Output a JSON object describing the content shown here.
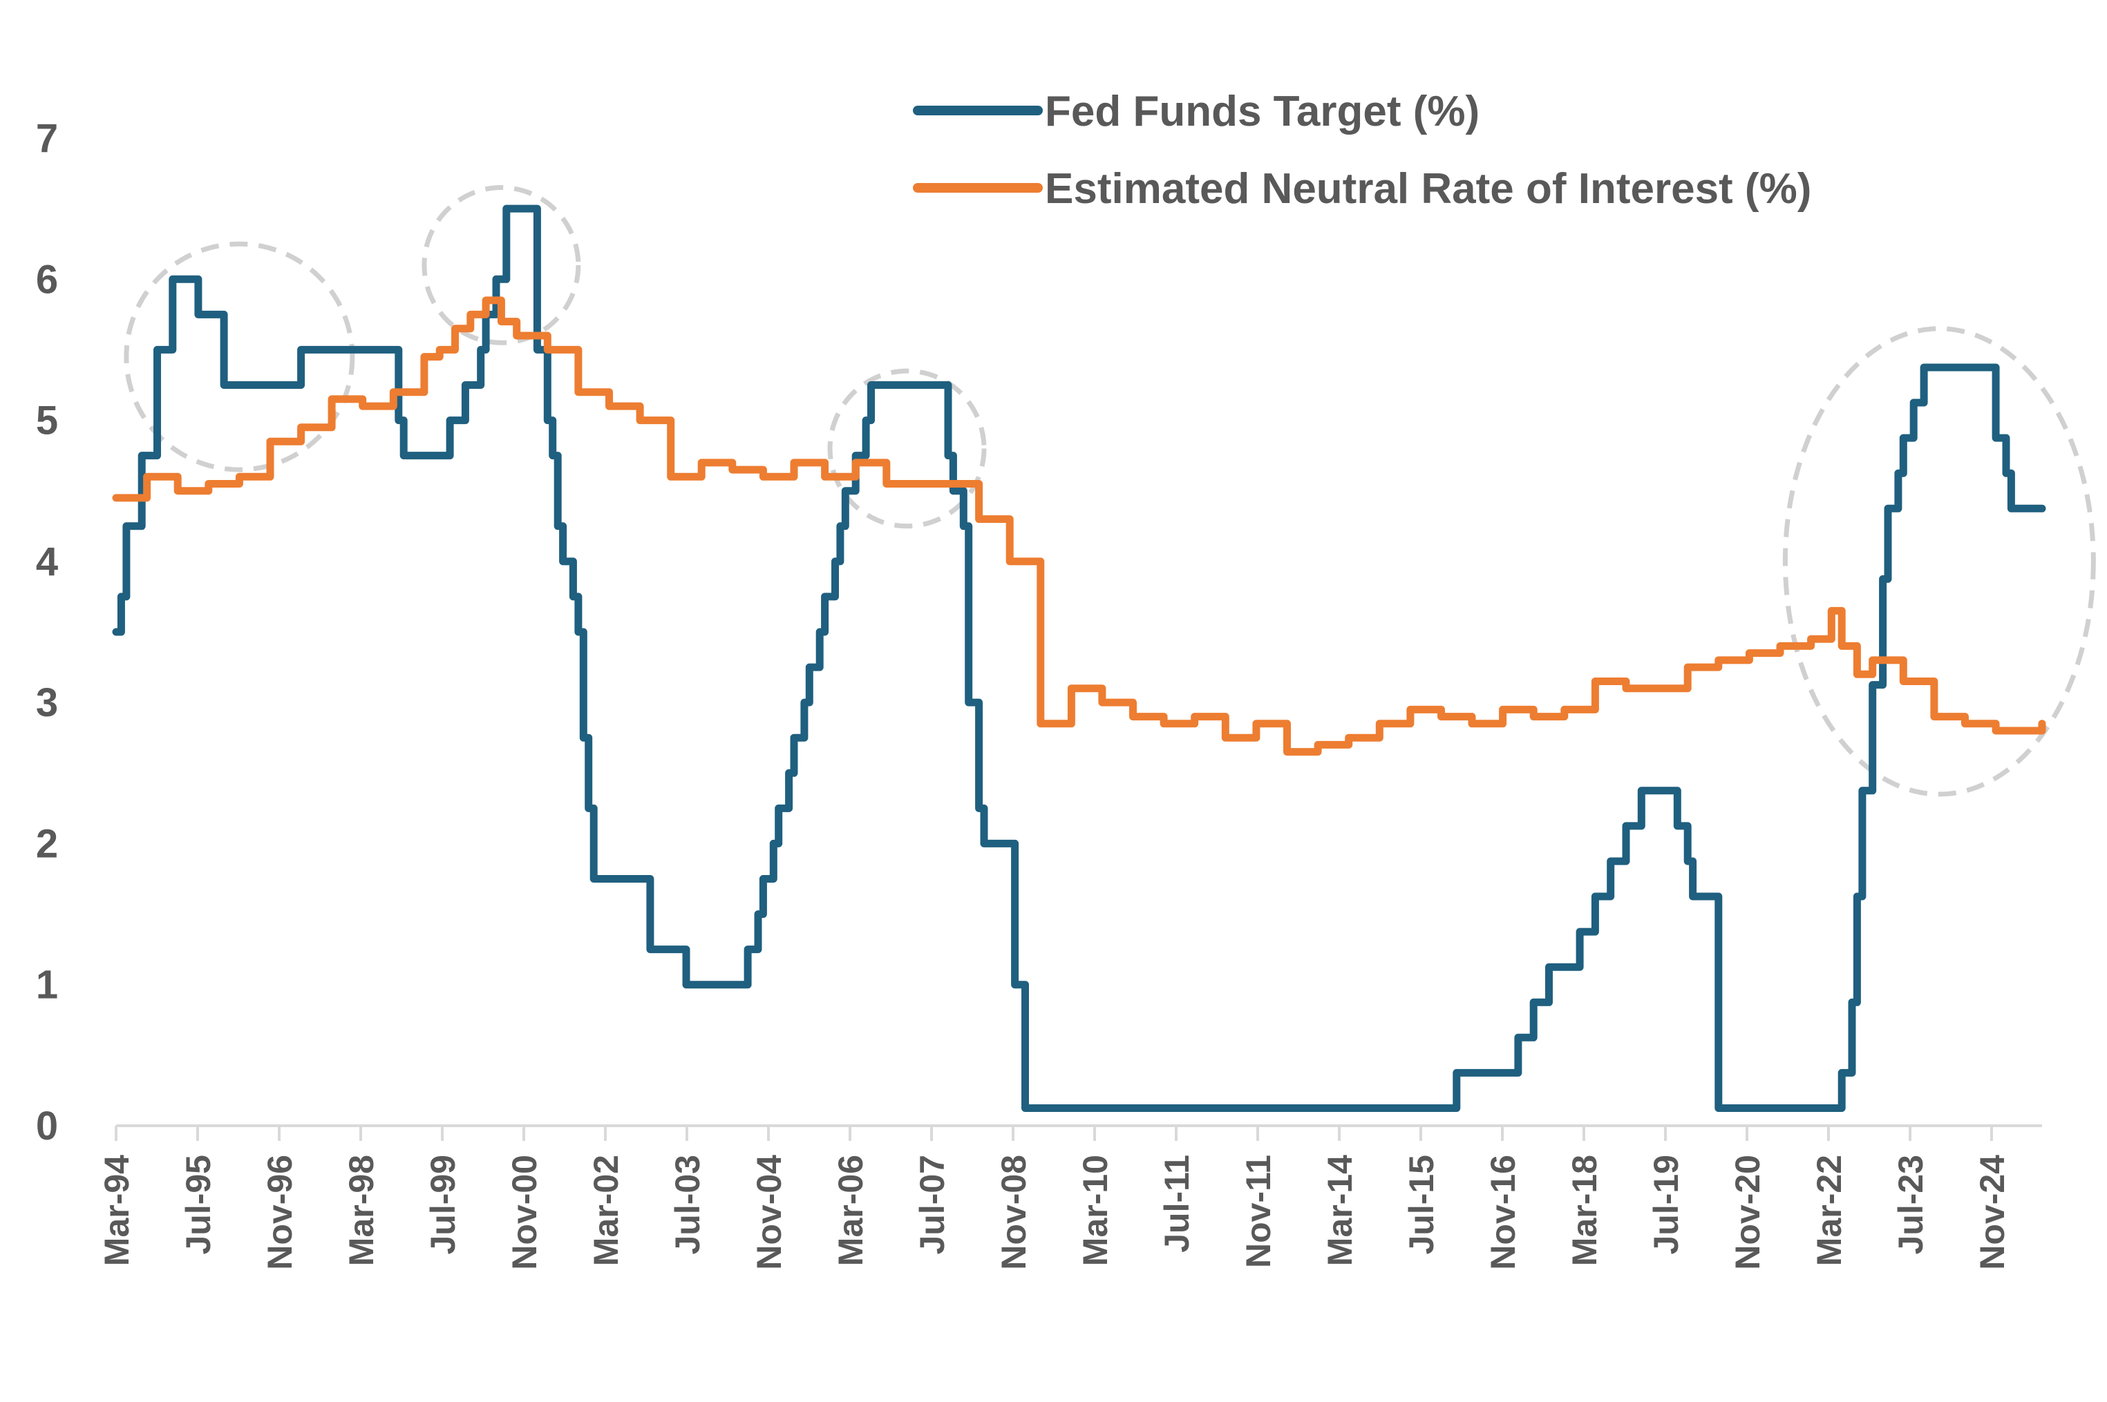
{
  "chart_data": {
    "type": "line",
    "title": "",
    "xlabel": "",
    "ylabel": "",
    "ylim": [
      0,
      7
    ],
    "y_ticks": [
      "0",
      "1",
      "2",
      "3",
      "4",
      "5",
      "6",
      "7"
    ],
    "x_tick_labels": [
      "Mar-94",
      "Jul-95",
      "Nov-96",
      "Mar-98",
      "Jul-99",
      "Nov-00",
      "Mar-02",
      "Jul-03",
      "Nov-04",
      "Mar-06",
      "Jul-07",
      "Nov-08",
      "Mar-10",
      "Jul-11",
      "Nov-11",
      "Mar-14",
      "Jul-15",
      "Nov-16",
      "Mar-18",
      "Jul-19",
      "Nov-20",
      "Mar-22",
      "Jul-23",
      "Nov-24"
    ],
    "legend_position": "top-right",
    "grid": false,
    "series": [
      {
        "name": "Fed Funds Target (%)",
        "color": "#1f5f7f",
        "x": [
          "1994-03",
          "1994-04",
          "1994-05",
          "1994-06",
          "1994-08",
          "1994-09",
          "1994-11",
          "1994-12",
          "1995-02",
          "1995-04",
          "1995-07",
          "1995-09",
          "1995-12",
          "1996-01",
          "1996-03",
          "1996-06",
          "1996-09",
          "1997-03",
          "1997-06",
          "1998-01",
          "1998-09",
          "1998-10",
          "1998-11",
          "1999-06",
          "1999-08",
          "1999-11",
          "2000-02",
          "2000-03",
          "2000-05",
          "2000-07",
          "2000-09",
          "2001-01",
          "2001-03",
          "2001-04",
          "2001-05",
          "2001-06",
          "2001-08",
          "2001-09",
          "2001-10",
          "2001-11",
          "2001-12",
          "2002-11",
          "2003-06",
          "2003-08",
          "2004-06",
          "2004-08",
          "2004-09",
          "2004-11",
          "2004-12",
          "2005-02",
          "2005-03",
          "2005-05",
          "2005-06",
          "2005-08",
          "2005-09",
          "2005-11",
          "2005-12",
          "2006-01",
          "2006-03",
          "2006-05",
          "2006-06",
          "2007-09",
          "2007-10",
          "2007-12",
          "2008-01",
          "2008-03",
          "2008-04",
          "2008-10",
          "2008-12",
          "2015-12",
          "2016-12",
          "2017-03",
          "2017-06",
          "2017-12",
          "2018-03",
          "2018-06",
          "2018-09",
          "2018-12",
          "2019-07",
          "2019-09",
          "2019-10",
          "2020-03",
          "2022-03",
          "2022-05",
          "2022-06",
          "2022-07",
          "2022-09",
          "2022-11",
          "2022-12",
          "2023-02",
          "2023-03",
          "2023-05",
          "2023-07",
          "2024-09",
          "2024-11",
          "2024-12",
          "2025-06"
        ],
        "values": [
          3.5,
          3.75,
          4.25,
          4.25,
          4.75,
          4.75,
          5.5,
          5.5,
          6.0,
          6.0,
          5.75,
          5.75,
          5.25,
          5.25,
          5.25,
          5.25,
          5.25,
          5.5,
          5.5,
          5.5,
          5.5,
          5.0,
          4.75,
          4.75,
          5.0,
          5.25,
          5.5,
          5.75,
          6.0,
          6.5,
          6.5,
          5.5,
          5.0,
          4.75,
          4.25,
          4.0,
          3.75,
          3.5,
          2.75,
          2.25,
          1.75,
          1.25,
          1.0,
          1.0,
          1.25,
          1.5,
          1.75,
          2.0,
          2.25,
          2.5,
          2.75,
          3.0,
          3.25,
          3.5,
          3.75,
          4.0,
          4.25,
          4.5,
          4.75,
          5.0,
          5.25,
          4.75,
          4.5,
          4.25,
          3.0,
          2.25,
          2.0,
          1.0,
          0.125,
          0.375,
          0.625,
          0.875,
          1.125,
          1.375,
          1.625,
          1.875,
          2.125,
          2.375,
          2.125,
          1.875,
          1.625,
          0.125,
          0.375,
          0.875,
          1.625,
          2.375,
          3.125,
          3.875,
          4.375,
          4.625,
          4.875,
          5.125,
          5.375,
          4.875,
          4.625,
          4.375,
          4.375
        ]
      },
      {
        "name": "Estimated Neutral Rate of Interest (%)",
        "color": "#ed7d31",
        "x": [
          "1994-03",
          "1994-09",
          "1995-03",
          "1995-09",
          "1996-03",
          "1996-09",
          "1997-03",
          "1997-09",
          "1998-03",
          "1998-09",
          "1999-03",
          "1999-06",
          "1999-09",
          "1999-12",
          "2000-03",
          "2000-06",
          "2000-09",
          "2001-03",
          "2001-09",
          "2002-03",
          "2002-09",
          "2003-03",
          "2003-09",
          "2004-03",
          "2004-09",
          "2005-03",
          "2005-09",
          "2006-03",
          "2006-09",
          "2007-03",
          "2007-09",
          "2008-03",
          "2008-09",
          "2009-03",
          "2009-09",
          "2010-03",
          "2010-09",
          "2011-03",
          "2011-09",
          "2012-03",
          "2012-09",
          "2013-03",
          "2013-09",
          "2014-03",
          "2014-09",
          "2015-03",
          "2015-09",
          "2016-03",
          "2016-09",
          "2017-03",
          "2017-09",
          "2018-03",
          "2018-09",
          "2019-03",
          "2019-09",
          "2020-03",
          "2020-09",
          "2021-03",
          "2021-09",
          "2022-01",
          "2022-03",
          "2022-06",
          "2022-09",
          "2023-03",
          "2023-09",
          "2024-03",
          "2024-09",
          "2025-03",
          "2025-06"
        ],
        "values": [
          4.45,
          4.6,
          4.5,
          4.55,
          4.6,
          4.85,
          4.95,
          5.15,
          5.1,
          5.2,
          5.45,
          5.5,
          5.65,
          5.75,
          5.85,
          5.7,
          5.6,
          5.5,
          5.2,
          5.1,
          5.0,
          4.6,
          4.7,
          4.65,
          4.6,
          4.7,
          4.6,
          4.7,
          4.55,
          4.55,
          4.55,
          4.3,
          4.0,
          2.85,
          3.1,
          3.0,
          2.9,
          2.85,
          2.9,
          2.75,
          2.85,
          2.65,
          2.7,
          2.75,
          2.85,
          2.95,
          2.9,
          2.85,
          2.95,
          2.9,
          2.95,
          3.15,
          3.1,
          3.1,
          3.25,
          3.3,
          3.35,
          3.4,
          3.45,
          3.65,
          3.4,
          3.2,
          3.3,
          3.15,
          2.9,
          2.85,
          2.8,
          2.8,
          2.85
        ]
      }
    ],
    "highlight_ellipses": [
      {
        "x_center": "1996-03",
        "y_center": 5.45,
        "x_radius_months": 22,
        "y_radius": 0.8
      },
      {
        "x_center": "2000-06",
        "y_center": 6.1,
        "x_radius_months": 15,
        "y_radius": 0.55
      },
      {
        "x_center": "2007-01",
        "y_center": 4.8,
        "x_radius_months": 15,
        "y_radius": 0.55
      },
      {
        "x_center": "2023-10",
        "y_center": 4.0,
        "x_radius_months": 30,
        "y_radius": 1.65
      }
    ]
  }
}
